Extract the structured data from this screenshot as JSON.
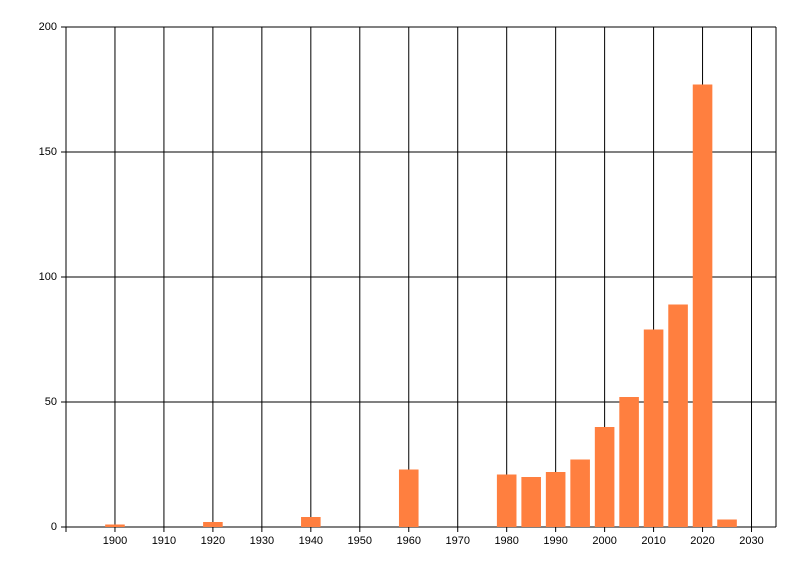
{
  "chart_data": {
    "type": "bar",
    "x": [
      1900,
      1920,
      1940,
      1960,
      1980,
      1985,
      1990,
      1995,
      2000,
      2005,
      2010,
      2015,
      2020,
      2025
    ],
    "values": [
      1,
      2,
      4,
      23,
      21,
      20,
      22,
      27,
      40,
      52,
      79,
      89,
      177,
      3
    ],
    "color": "#ff7f3f",
    "xlim": [
      1890,
      2035
    ],
    "xticks": [
      1900,
      1910,
      1920,
      1930,
      1940,
      1950,
      1960,
      1970,
      1980,
      1990,
      2000,
      2010,
      2020,
      2030
    ],
    "ylim": [
      0,
      200
    ],
    "yticks": [
      0,
      50,
      100,
      150,
      200
    ],
    "grid": true
  }
}
